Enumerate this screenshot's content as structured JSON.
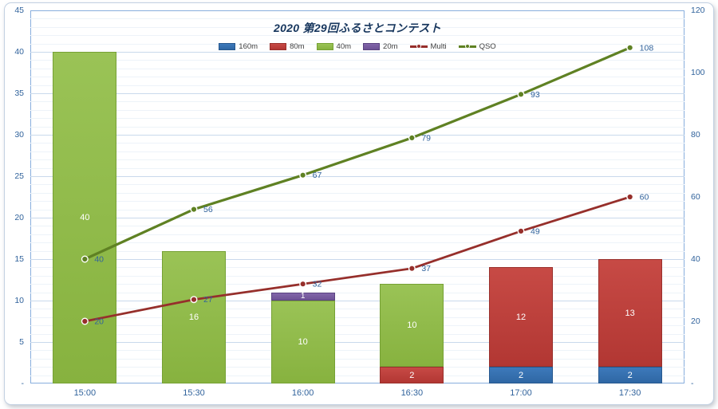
{
  "window": {
    "background": "#ffffff",
    "frame_border_color": "#c3d1e2"
  },
  "chart_data": {
    "type": "combo-stacked-bar-line",
    "title": "2020 第29回ふるさとコンテスト",
    "title_color": "#17365d",
    "categories": [
      "15:00",
      "15:30",
      "16:00",
      "16:30",
      "17:00",
      "17:30"
    ],
    "bar_series": [
      {
        "name": "160m",
        "color": "#3d79bb",
        "color2": "#2f67a4",
        "border": "#27588e",
        "values": [
          0,
          0,
          0,
          0,
          2,
          2
        ]
      },
      {
        "name": "80m",
        "color": "#c74a45",
        "color2": "#b23733",
        "border": "#99302c",
        "values": [
          0,
          0,
          0,
          2,
          12,
          13
        ]
      },
      {
        "name": "40m",
        "color": "#9ac356",
        "color2": "#87b23f",
        "border": "#76a135",
        "values": [
          40,
          16,
          10,
          10,
          0,
          0
        ]
      },
      {
        "name": "20m",
        "color": "#8165a9",
        "color2": "#6e5295",
        "border": "#5a4380",
        "values": [
          0,
          0,
          1,
          0,
          0,
          0
        ]
      }
    ],
    "line_series": [
      {
        "name": "Multi",
        "color": "#962f2b",
        "width": 2.8,
        "values": [
          20,
          27,
          32,
          37,
          49,
          60
        ]
      },
      {
        "name": "QSO",
        "color": "#5f8123",
        "width": 3.2,
        "values": [
          40,
          56,
          67,
          79,
          93,
          108
        ]
      }
    ],
    "left_axis": {
      "min": 0,
      "max": 45,
      "step": 5,
      "tick_labels": [
        "45",
        "40",
        "35",
        "30",
        "25",
        "20",
        "15",
        "10",
        "5",
        "-"
      ]
    },
    "right_axis": {
      "min": 0,
      "max": 120,
      "step": 20,
      "tick_labels": [
        "120",
        "100",
        "80",
        "60",
        "40",
        "20",
        "-"
      ]
    },
    "axis_text_color": "#31639c",
    "point_label_color": "#31639c",
    "bar_label_color": "#ffffff",
    "grid": {
      "minor_color": "#edf3f9",
      "major_color": "#c9d9ec",
      "border_color": "#88aedd",
      "minor_step": 1,
      "major_step": 5
    },
    "legend_position": "top-center"
  }
}
